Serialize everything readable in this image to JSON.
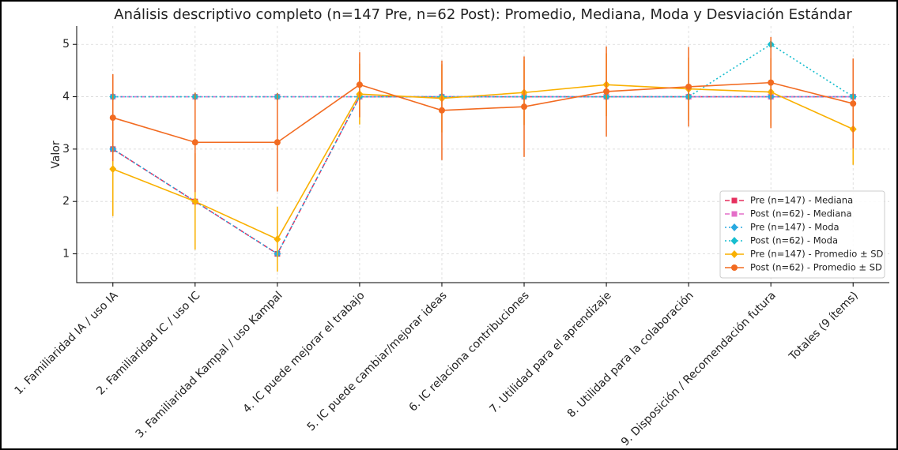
{
  "chart_data": {
    "type": "line",
    "title": "Análisis descriptivo completo (n=147 Pre, n=62 Post): Promedio, Mediana, Moda y Desviación Estándar",
    "y_label": "Valor",
    "categories": [
      "1. Familiaridad IA / uso IA",
      "2. Familiaridad IC / uso IC",
      "3. Familiaridad Kampal / uso Kampal",
      "4. IC puede mejorar el trabajo",
      "5. IC puede cambiar/mejorar ideas",
      "6. IC relaciona contribuciones",
      "7. Utilidad para el aprendizaje",
      "8. Utilidad para la colaboración",
      "9. Disposición / Recomendación futura",
      "Totales (9 ítems)"
    ],
    "ylim": [
      0.45,
      5.35
    ],
    "yticks": [
      1,
      2,
      3,
      4,
      5
    ],
    "grid": true,
    "legend": "lower right",
    "series": [
      {
        "name": "Pre (n=147) - Mediana",
        "color": "#e6305f",
        "dash": "dashed",
        "marker": "square",
        "values": [
          3,
          2,
          1,
          4,
          4,
          4,
          4,
          4,
          4,
          4
        ]
      },
      {
        "name": "Post (n=62) - Mediana",
        "color": "#e46fc8",
        "dash": "dashed",
        "marker": "square",
        "values": [
          4,
          4,
          4,
          4,
          4,
          4,
          4,
          4,
          4,
          4
        ]
      },
      {
        "name": "Pre (n=147) - Moda",
        "color": "#29a9e0",
        "dash": "dotted",
        "marker": "diamond",
        "values": [
          3,
          2,
          1,
          4,
          4,
          4,
          4,
          4,
          4,
          4
        ]
      },
      {
        "name": "Post (n=62) - Moda",
        "color": "#17becf",
        "dash": "dotted",
        "marker": "diamond",
        "values": [
          4,
          4,
          4,
          4,
          4,
          4,
          4,
          4,
          5,
          4
        ]
      },
      {
        "name": "Pre (n=147) - Promedio ± SD",
        "color": "#f9b000",
        "dash": "solid",
        "marker": "diamond",
        "values": [
          2.62,
          2.0,
          1.28,
          4.05,
          3.97,
          4.08,
          4.23,
          4.15,
          4.09,
          3.38
        ],
        "errors": [
          0.9,
          0.92,
          0.62,
          0.58,
          0.65,
          0.62,
          0.6,
          0.6,
          0.65,
          0.68
        ]
      },
      {
        "name": "Post (n=62) - Promedio ± SD",
        "color": "#f26b21",
        "dash": "solid",
        "marker": "circle",
        "values": [
          3.6,
          3.13,
          3.13,
          4.23,
          3.74,
          3.81,
          4.1,
          4.19,
          4.27,
          3.87
        ],
        "errors": [
          0.83,
          0.95,
          0.94,
          0.62,
          0.95,
          0.96,
          0.86,
          0.76,
          0.87,
          0.86
        ]
      }
    ]
  }
}
